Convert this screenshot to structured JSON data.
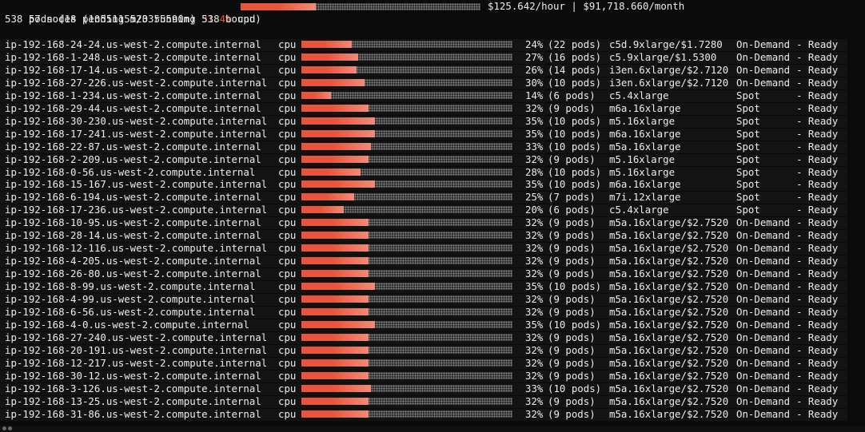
{
  "header": {
    "nodes_summary": "57 nodes (1055115m/3355590m)",
    "cpu_pct": "31.4%",
    "cpu_label": "cpu",
    "cpu_fraction": 0.314,
    "cost": "$125.642/hour | $91,718.660/month",
    "pods_summary": "538 pods (18 pending 520 running 538 bound)"
  },
  "colors": {
    "bar_fill": "#e8553a",
    "bar_fill_light": "#f08a7a",
    "bar_empty": "#8a8a8a",
    "text": "#ececec",
    "header_pct": "#e8553a"
  },
  "nodes": [
    {
      "name": "ip-192-168-24-24.us-west-2.compute.internal",
      "res": "cpu",
      "pct": "24%",
      "frac": 0.24,
      "pods": "(22 pods)",
      "type": "c5d.9xlarge/$1.7280",
      "capacity": "On-Demand",
      "status": "- Ready"
    },
    {
      "name": "ip-192-168-1-248.us-west-2.compute.internal",
      "res": "cpu",
      "pct": "27%",
      "frac": 0.27,
      "pods": "(16 pods)",
      "type": "c5.9xlarge/$1.5300",
      "capacity": "On-Demand",
      "status": "- Ready"
    },
    {
      "name": "ip-192-168-17-14.us-west-2.compute.internal",
      "res": "cpu",
      "pct": "26%",
      "frac": 0.26,
      "pods": "(14 pods)",
      "type": "i3en.6xlarge/$2.7120",
      "capacity": "On-Demand",
      "status": "- Ready"
    },
    {
      "name": "ip-192-168-27-226.us-west-2.compute.internal",
      "res": "cpu",
      "pct": "30%",
      "frac": 0.3,
      "pods": "(10 pods)",
      "type": "i3en.6xlarge/$2.7120",
      "capacity": "On-Demand",
      "status": "- Ready"
    },
    {
      "name": "ip-192-168-1-234.us-west-2.compute.internal",
      "res": "cpu",
      "pct": "14%",
      "frac": 0.14,
      "pods": "(6 pods)",
      "type": "c5.4xlarge",
      "capacity": "Spot",
      "status": "- Ready"
    },
    {
      "name": "ip-192-168-29-44.us-west-2.compute.internal",
      "res": "cpu",
      "pct": "32%",
      "frac": 0.32,
      "pods": "(9 pods)",
      "type": "m6a.16xlarge",
      "capacity": "Spot",
      "status": "- Ready"
    },
    {
      "name": "ip-192-168-30-230.us-west-2.compute.internal",
      "res": "cpu",
      "pct": "35%",
      "frac": 0.35,
      "pods": "(10 pods)",
      "type": "m5.16xlarge",
      "capacity": "Spot",
      "status": "- Ready"
    },
    {
      "name": "ip-192-168-17-241.us-west-2.compute.internal",
      "res": "cpu",
      "pct": "35%",
      "frac": 0.35,
      "pods": "(10 pods)",
      "type": "m6a.16xlarge",
      "capacity": "Spot",
      "status": "- Ready"
    },
    {
      "name": "ip-192-168-22-87.us-west-2.compute.internal",
      "res": "cpu",
      "pct": "33%",
      "frac": 0.33,
      "pods": "(10 pods)",
      "type": "m5a.16xlarge",
      "capacity": "Spot",
      "status": "- Ready"
    },
    {
      "name": "ip-192-168-2-209.us-west-2.compute.internal",
      "res": "cpu",
      "pct": "32%",
      "frac": 0.32,
      "pods": "(9 pods)",
      "type": "m5.16xlarge",
      "capacity": "Spot",
      "status": "- Ready"
    },
    {
      "name": "ip-192-168-0-56.us-west-2.compute.internal",
      "res": "cpu",
      "pct": "28%",
      "frac": 0.28,
      "pods": "(10 pods)",
      "type": "m5.16xlarge",
      "capacity": "Spot",
      "status": "- Ready"
    },
    {
      "name": "ip-192-168-15-167.us-west-2.compute.internal",
      "res": "cpu",
      "pct": "35%",
      "frac": 0.35,
      "pods": "(10 pods)",
      "type": "m6a.16xlarge",
      "capacity": "Spot",
      "status": "- Ready"
    },
    {
      "name": "ip-192-168-6-194.us-west-2.compute.internal",
      "res": "cpu",
      "pct": "25%",
      "frac": 0.25,
      "pods": "(7 pods)",
      "type": "m7i.12xlarge",
      "capacity": "Spot",
      "status": "- Ready"
    },
    {
      "name": "ip-192-168-17-236.us-west-2.compute.internal",
      "res": "cpu",
      "pct": "20%",
      "frac": 0.2,
      "pods": "(6 pods)",
      "type": "c5.4xlarge",
      "capacity": "Spot",
      "status": "- Ready"
    },
    {
      "name": "ip-192-168-10-95.us-west-2.compute.internal",
      "res": "cpu",
      "pct": "32%",
      "frac": 0.32,
      "pods": "(9 pods)",
      "type": "m5a.16xlarge/$2.7520",
      "capacity": "On-Demand",
      "status": "- Ready"
    },
    {
      "name": "ip-192-168-28-14.us-west-2.compute.internal",
      "res": "cpu",
      "pct": "32%",
      "frac": 0.32,
      "pods": "(9 pods)",
      "type": "m5a.16xlarge/$2.7520",
      "capacity": "On-Demand",
      "status": "- Ready"
    },
    {
      "name": "ip-192-168-12-116.us-west-2.compute.internal",
      "res": "cpu",
      "pct": "32%",
      "frac": 0.32,
      "pods": "(9 pods)",
      "type": "m5a.16xlarge/$2.7520",
      "capacity": "On-Demand",
      "status": "- Ready"
    },
    {
      "name": "ip-192-168-4-205.us-west-2.compute.internal",
      "res": "cpu",
      "pct": "32%",
      "frac": 0.32,
      "pods": "(9 pods)",
      "type": "m5a.16xlarge/$2.7520",
      "capacity": "On-Demand",
      "status": "- Ready"
    },
    {
      "name": "ip-192-168-26-80.us-west-2.compute.internal",
      "res": "cpu",
      "pct": "32%",
      "frac": 0.32,
      "pods": "(9 pods)",
      "type": "m5a.16xlarge/$2.7520",
      "capacity": "On-Demand",
      "status": "- Ready"
    },
    {
      "name": "ip-192-168-8-99.us-west-2.compute.internal",
      "res": "cpu",
      "pct": "35%",
      "frac": 0.35,
      "pods": "(10 pods)",
      "type": "m5a.16xlarge/$2.7520",
      "capacity": "On-Demand",
      "status": "- Ready"
    },
    {
      "name": "ip-192-168-4-99.us-west-2.compute.internal",
      "res": "cpu",
      "pct": "32%",
      "frac": 0.32,
      "pods": "(9 pods)",
      "type": "m5a.16xlarge/$2.7520",
      "capacity": "On-Demand",
      "status": "- Ready"
    },
    {
      "name": "ip-192-168-6-56.us-west-2.compute.internal",
      "res": "cpu",
      "pct": "32%",
      "frac": 0.32,
      "pods": "(9 pods)",
      "type": "m5a.16xlarge/$2.7520",
      "capacity": "On-Demand",
      "status": "- Ready"
    },
    {
      "name": "ip-192-168-4-0.us-west-2.compute.internal",
      "res": "cpu",
      "pct": "35%",
      "frac": 0.35,
      "pods": "(10 pods)",
      "type": "m5a.16xlarge/$2.7520",
      "capacity": "On-Demand",
      "status": "- Ready"
    },
    {
      "name": "ip-192-168-27-240.us-west-2.compute.internal",
      "res": "cpu",
      "pct": "32%",
      "frac": 0.32,
      "pods": "(9 pods)",
      "type": "m5a.16xlarge/$2.7520",
      "capacity": "On-Demand",
      "status": "- Ready"
    },
    {
      "name": "ip-192-168-20-191.us-west-2.compute.internal",
      "res": "cpu",
      "pct": "32%",
      "frac": 0.32,
      "pods": "(9 pods)",
      "type": "m5a.16xlarge/$2.7520",
      "capacity": "On-Demand",
      "status": "- Ready"
    },
    {
      "name": "ip-192-168-12-217.us-west-2.compute.internal",
      "res": "cpu",
      "pct": "32%",
      "frac": 0.32,
      "pods": "(9 pods)",
      "type": "m5a.16xlarge/$2.7520",
      "capacity": "On-Demand",
      "status": "- Ready"
    },
    {
      "name": "ip-192-168-30-12.us-west-2.compute.internal",
      "res": "cpu",
      "pct": "32%",
      "frac": 0.32,
      "pods": "(9 pods)",
      "type": "m5a.16xlarge/$2.7520",
      "capacity": "On-Demand",
      "status": "- Ready"
    },
    {
      "name": "ip-192-168-3-126.us-west-2.compute.internal",
      "res": "cpu",
      "pct": "33%",
      "frac": 0.33,
      "pods": "(10 pods)",
      "type": "m5a.16xlarge/$2.7520",
      "capacity": "On-Demand",
      "status": "- Ready"
    },
    {
      "name": "ip-192-168-13-25.us-west-2.compute.internal",
      "res": "cpu",
      "pct": "32%",
      "frac": 0.32,
      "pods": "(9 pods)",
      "type": "m5a.16xlarge/$2.7520",
      "capacity": "On-Demand",
      "status": "- Ready"
    },
    {
      "name": "ip-192-168-31-86.us-west-2.compute.internal",
      "res": "cpu",
      "pct": "32%",
      "frac": 0.32,
      "pods": "(9 pods)",
      "type": "m5a.16xlarge/$2.7520",
      "capacity": "On-Demand",
      "status": "- Ready"
    }
  ]
}
